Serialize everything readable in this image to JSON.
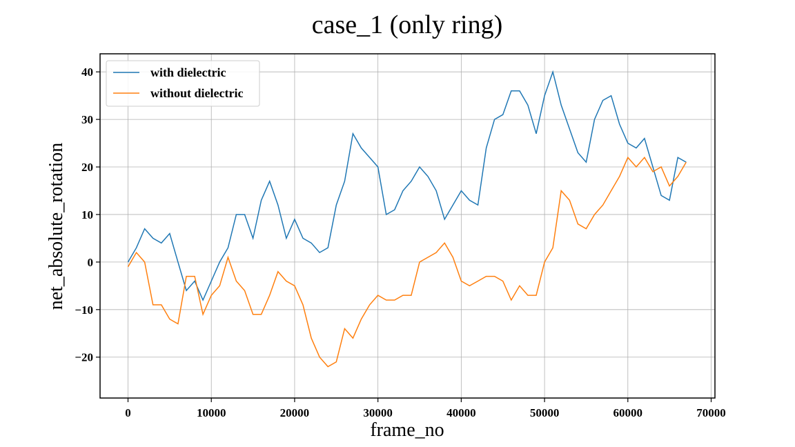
{
  "chart_data": {
    "type": "line",
    "title": "case_1 (only ring)",
    "x_label": "frame_no",
    "y_label": "net_absolute_rotation",
    "x": [
      0,
      1000,
      2000,
      3000,
      4000,
      5000,
      6000,
      7000,
      8000,
      9000,
      10000,
      11000,
      12000,
      13000,
      14000,
      15000,
      16000,
      17000,
      18000,
      19000,
      20000,
      21000,
      22000,
      23000,
      24000,
      25000,
      26000,
      27000,
      28000,
      29000,
      30000,
      31000,
      32000,
      33000,
      34000,
      35000,
      36000,
      37000,
      38000,
      39000,
      40000,
      41000,
      42000,
      43000,
      44000,
      45000,
      46000,
      47000,
      48000,
      49000,
      50000,
      51000,
      52000,
      53000,
      54000,
      55000,
      56000,
      57000,
      58000,
      59000,
      60000,
      61000,
      62000,
      63000,
      64000,
      65000,
      66000,
      67000
    ],
    "series": [
      {
        "name": "with dielectric",
        "color": "#1f77b4",
        "values": [
          0,
          3,
          7,
          5,
          4,
          6,
          0,
          -6,
          -4,
          -8,
          -4,
          0,
          3,
          10,
          10,
          5,
          13,
          17,
          12,
          5,
          9,
          5,
          4,
          2,
          3,
          12,
          17,
          27,
          24,
          22,
          20,
          10,
          11,
          15,
          17,
          20,
          18,
          15,
          9,
          12,
          15,
          13,
          12,
          24,
          30,
          31,
          36,
          36,
          33,
          27,
          35,
          40,
          33,
          28,
          23,
          21,
          30,
          34,
          35,
          29,
          25,
          24,
          26,
          20,
          14,
          13,
          22,
          21
        ]
      },
      {
        "name": "without dielectric",
        "color": "#ff7f0e",
        "values": [
          -1,
          2,
          0,
          -9,
          -9,
          -12,
          -13,
          -3,
          -3,
          -11,
          -7,
          -5,
          1,
          -4,
          -6,
          -11,
          -11,
          -7,
          -2,
          -4,
          -5,
          -9,
          -16,
          -20,
          -22,
          -21,
          -14,
          -16,
          -12,
          -9,
          -7,
          -8,
          -8,
          -7,
          -7,
          0,
          1,
          2,
          4,
          1,
          -4,
          -5,
          -4,
          -3,
          -3,
          -4,
          -8,
          -5,
          -7,
          -7,
          0,
          3,
          15,
          13,
          8,
          7,
          10,
          12,
          15,
          18,
          22,
          20,
          22,
          19,
          20,
          16,
          18,
          21
        ]
      }
    ],
    "xlim": [
      -3355,
      70455
    ],
    "ylim": [
      -28.6,
      43.8
    ],
    "xticks": [
      0,
      10000,
      20000,
      30000,
      40000,
      50000,
      60000,
      70000
    ],
    "yticks": [
      {
        "value": -20,
        "label": "−20"
      },
      {
        "value": -10,
        "label": "−10"
      },
      0,
      10,
      20,
      30,
      40
    ],
    "grid": true,
    "legend": "upper left"
  }
}
